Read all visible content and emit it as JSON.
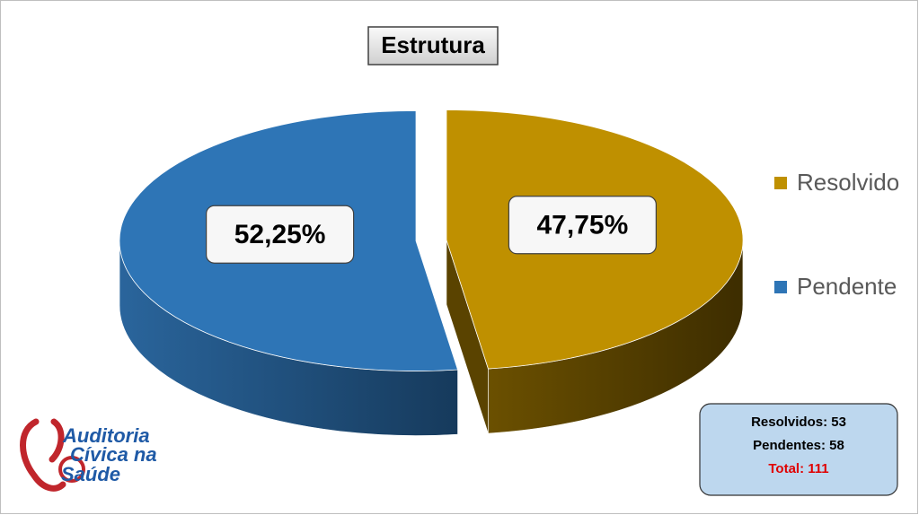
{
  "chart_data": {
    "type": "pie",
    "title": "Estrutura",
    "categories": [
      "Resolvido",
      "Pendente"
    ],
    "values": [
      47.75,
      52.25
    ],
    "value_labels": [
      "47,75%",
      "52,25%"
    ],
    "colors": [
      "#bf9000",
      "#2e75b6"
    ],
    "legend": "right",
    "summary": [
      "Resolvidos: 53",
      "Pendentes: 58",
      "Total: 111"
    ]
  },
  "logo": [
    "Auditoria",
    "Cívica na",
    "Saúde"
  ]
}
